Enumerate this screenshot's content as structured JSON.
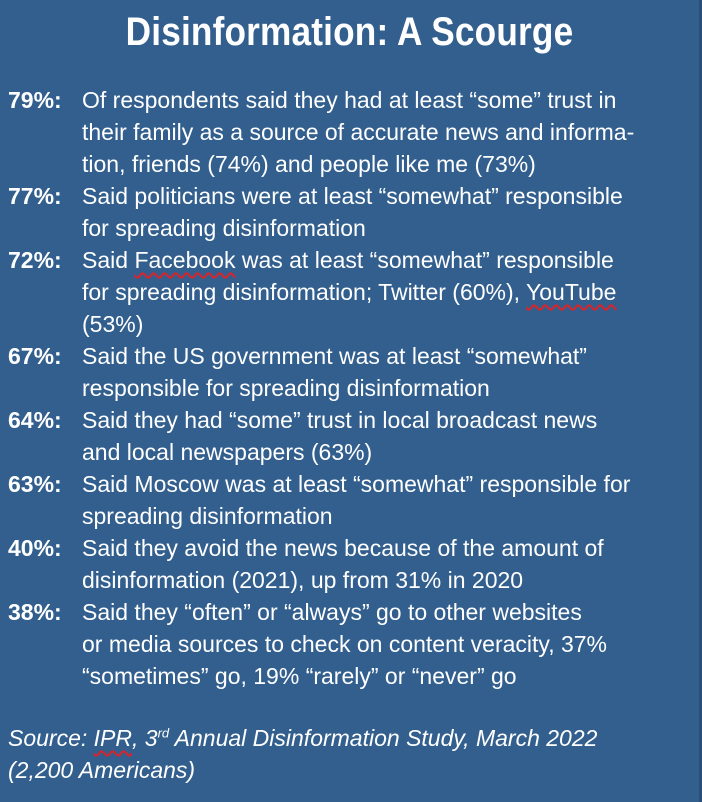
{
  "title": "Disinformation: A Scourge",
  "stats": [
    {
      "pct": "79%:",
      "lines": [
        "Of respondents said they had at least “some” trust in",
        "their family as a source of accurate news and informa-",
        "tion, friends (74%) and people like me (73%)"
      ]
    },
    {
      "pct": "77%:",
      "lines": [
        "Said politicians were at least “somewhat” responsible",
        "for spreading disinformation"
      ]
    },
    {
      "pct": "72%:",
      "l1_pre": "Said ",
      "l1_link": "Facebook",
      "l1_post": " was at least “somewhat” responsible",
      "l2_pre": "for spreading disinformation; Twitter (60%), ",
      "l2_link": "YouTube",
      "l3": "(53%)"
    },
    {
      "pct": "67%:",
      "lines": [
        "Said the US government was at least “somewhat”",
        "responsible for spreading disinformation"
      ]
    },
    {
      "pct": "64%:",
      "lines": [
        "Said they had “some” trust in local broadcast news",
        "and local newspapers (63%)"
      ]
    },
    {
      "pct": "63%:",
      "lines": [
        "Said Moscow was at least “somewhat” responsible for",
        "spreading disinformation"
      ]
    },
    {
      "pct": "40%:",
      "lines": [
        "Said they avoid the news because of the amount of",
        "disinformation (2021), up from 31% in 2020"
      ]
    },
    {
      "pct": "38%:",
      "lines": [
        "Said they “often” or “always” go to other websites",
        "or media sources to check on content veracity, 37%",
        "“sometimes” go, 19% “rarely” or “never” go"
      ]
    }
  ],
  "source": {
    "prefix": "Source: ",
    "org": "IPR",
    "sep": ", 3",
    "sup": "rd",
    "rest": " Annual Disinformation Study, March 2022",
    "line2": "(2,200 Americans)"
  }
}
